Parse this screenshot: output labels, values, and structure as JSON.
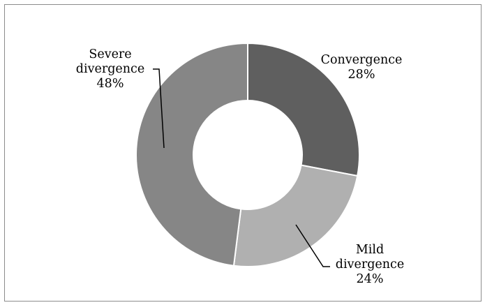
{
  "chart_data": {
    "type": "pie",
    "variant": "doughnut",
    "title": "",
    "categories": [
      "Convergence",
      "Mild divergence",
      "Severe divergence"
    ],
    "values": [
      28,
      24,
      48
    ],
    "unit": "%",
    "labels": [
      {
        "lines": [
          "Convergence",
          "28%"
        ]
      },
      {
        "lines": [
          "Mild",
          "divergence",
          "24%"
        ]
      },
      {
        "lines": [
          "Severe",
          "divergence",
          "48%"
        ]
      }
    ],
    "colors": [
      "#5f5f5f",
      "#b0b0b0",
      "#868686"
    ],
    "legend": "none"
  }
}
